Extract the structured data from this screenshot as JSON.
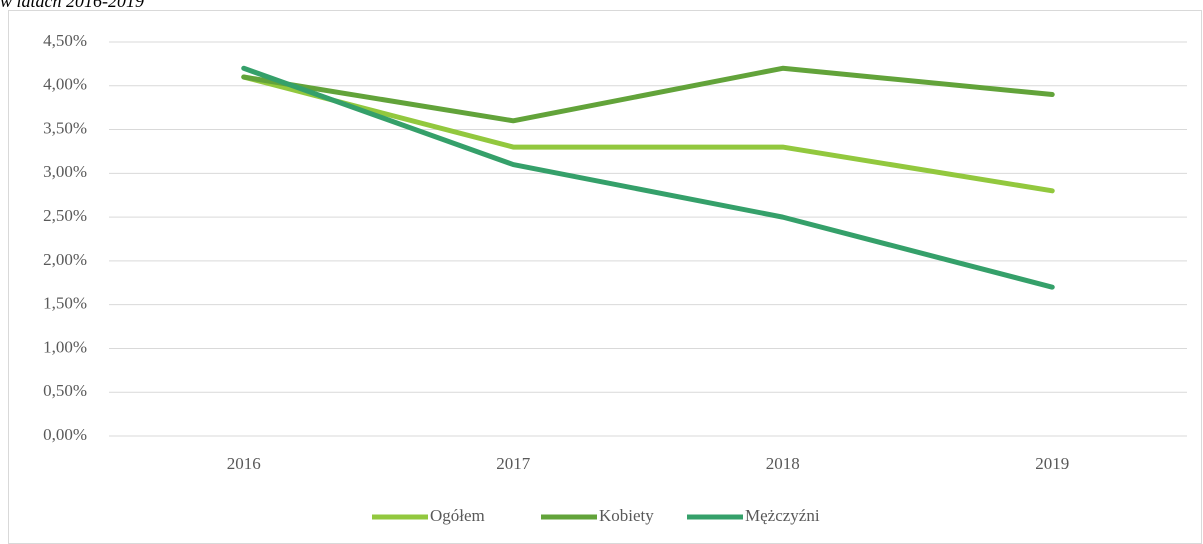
{
  "chart_data": {
    "type": "line",
    "title": "w latach 2016-2019",
    "categories": [
      "2016",
      "2017",
      "2018",
      "2019"
    ],
    "series": [
      {
        "name": "Ogółem",
        "color": "#92c83e",
        "values": [
          4.1,
          3.3,
          3.3,
          2.8
        ]
      },
      {
        "name": "Kobiety",
        "color": "#62a33a",
        "values": [
          4.1,
          3.6,
          4.2,
          3.9
        ]
      },
      {
        "name": "Mężczyźni",
        "color": "#35a06a",
        "values": [
          4.2,
          3.1,
          2.5,
          1.7
        ]
      }
    ],
    "ylim": [
      0,
      4.5
    ],
    "yticks": [
      {
        "value": 0,
        "label": "0,00%"
      },
      {
        "value": 0.5,
        "label": "0,50%"
      },
      {
        "value": 1,
        "label": "1,00%"
      },
      {
        "value": 1.5,
        "label": "1,50%"
      },
      {
        "value": 2,
        "label": "2,00%"
      },
      {
        "value": 2.5,
        "label": "2,50%"
      },
      {
        "value": 3,
        "label": "3,00%"
      },
      {
        "value": 3.5,
        "label": "3,50%"
      },
      {
        "value": 4,
        "label": "4,00%"
      },
      {
        "value": 4.5,
        "label": "4,50%"
      }
    ],
    "grid": true,
    "legend": "bottom"
  }
}
